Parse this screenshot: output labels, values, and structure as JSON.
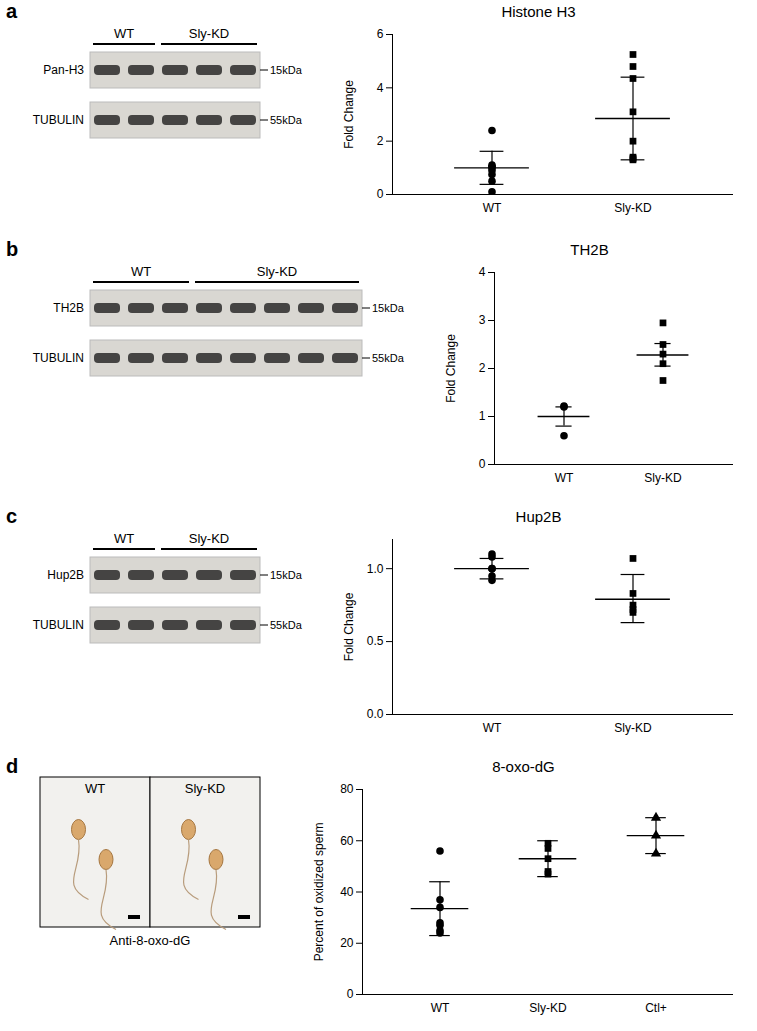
{
  "chart_data": [
    {
      "panel": "a",
      "type": "scatter",
      "title": "Histone H3",
      "ylabel": "Fold Change",
      "categories": [
        "WT",
        "Sly-KD"
      ],
      "ylim": [
        0,
        6
      ],
      "yticks": [
        0,
        2,
        4,
        6
      ],
      "color": "#000000",
      "groups": [
        {
          "category": "WT",
          "marker": "circle",
          "values": [
            2.4,
            1.1,
            1.05,
            1.0,
            0.9,
            0.75,
            0.5,
            0.1
          ],
          "mean": 1.0,
          "error": [
            0.38,
            1.62
          ]
        },
        {
          "category": "Sly-KD",
          "marker": "square",
          "values": [
            5.25,
            4.8,
            4.35,
            3.1,
            2.0,
            1.4,
            1.35,
            1.3
          ],
          "mean": 2.85,
          "error": [
            1.3,
            4.4
          ]
        }
      ],
      "blot": {
        "lanes": [
          {
            "label": "WT",
            "count": 2
          },
          {
            "label": "Sly-KD",
            "count": 3
          }
        ],
        "rows": [
          {
            "label": "Pan-H3",
            "size": "15kDa"
          },
          {
            "label": "TUBULIN",
            "size": "55kDa"
          }
        ]
      }
    },
    {
      "panel": "b",
      "type": "scatter",
      "title": "TH2B",
      "ylabel": "Fold Change",
      "categories": [
        "WT",
        "Sly-KD"
      ],
      "ylim": [
        0,
        4
      ],
      "yticks": [
        0,
        1,
        2,
        3,
        4
      ],
      "color": "#000000",
      "groups": [
        {
          "category": "WT",
          "marker": "circle",
          "values": [
            1.22,
            1.2,
            0.6
          ],
          "mean": 1.0,
          "error": [
            0.8,
            1.2
          ]
        },
        {
          "category": "Sly-KD",
          "marker": "square",
          "values": [
            2.95,
            2.5,
            2.3,
            2.1,
            1.75
          ],
          "mean": 2.28,
          "error": [
            2.05,
            2.52
          ]
        }
      ],
      "blot": {
        "lanes": [
          {
            "label": "WT",
            "count": 3
          },
          {
            "label": "Sly-KD",
            "count": 5
          }
        ],
        "rows": [
          {
            "label": "TH2B",
            "size": "15kDa"
          },
          {
            "label": "TUBULIN",
            "size": "55kDa"
          }
        ]
      }
    },
    {
      "panel": "c",
      "type": "scatter",
      "title": "Hup2B",
      "ylabel": "Fold Change",
      "categories": [
        "WT",
        "Sly-KD"
      ],
      "ylim": [
        0,
        1.2
      ],
      "yticks": [
        {
          "value": 0,
          "label": "0.0"
        },
        {
          "value": 0.5,
          "label": "0.5"
        },
        {
          "value": 1,
          "label": "1.0"
        }
      ],
      "color": "#000000",
      "groups": [
        {
          "category": "WT",
          "marker": "circle",
          "values": [
            1.1,
            1.08,
            1.0,
            1.0,
            0.95,
            0.92
          ],
          "mean": 1.0,
          "error": [
            0.93,
            1.07
          ]
        },
        {
          "category": "Sly-KD",
          "marker": "square",
          "values": [
            1.07,
            0.83,
            0.75,
            0.72,
            0.7
          ],
          "mean": 0.79,
          "error": [
            0.63,
            0.96
          ]
        }
      ],
      "blot": {
        "lanes": [
          {
            "label": "WT",
            "count": 2
          },
          {
            "label": "Sly-KD",
            "count": 3
          }
        ],
        "rows": [
          {
            "label": "Hup2B",
            "size": "15kDa"
          },
          {
            "label": "TUBULIN",
            "size": "55kDa"
          }
        ]
      }
    },
    {
      "panel": "d",
      "type": "scatter",
      "title": "8-oxo-dG",
      "ylabel": "Percent of oxidized sperm",
      "categories": [
        "WT",
        "Sly-KD",
        "Ctl+"
      ],
      "ylim": [
        0,
        80
      ],
      "yticks": [
        0,
        20,
        40,
        60,
        80
      ],
      "color": "#000000",
      "groups": [
        {
          "category": "WT",
          "marker": "circle",
          "values": [
            56,
            37,
            34,
            28,
            27,
            25,
            24
          ],
          "mean": 33.5,
          "error": [
            23,
            44
          ]
        },
        {
          "category": "Sly-KD",
          "marker": "square",
          "values": [
            59,
            57,
            53,
            48,
            47
          ],
          "mean": 53,
          "error": [
            46,
            60
          ]
        },
        {
          "category": "Ctl+",
          "marker": "triangle",
          "values": [
            69,
            62,
            55
          ],
          "mean": 62,
          "error": [
            55,
            69
          ]
        }
      ],
      "image": {
        "labels": [
          "WT",
          "Sly-KD"
        ],
        "caption": "Anti-8-oxo-dG"
      }
    }
  ]
}
